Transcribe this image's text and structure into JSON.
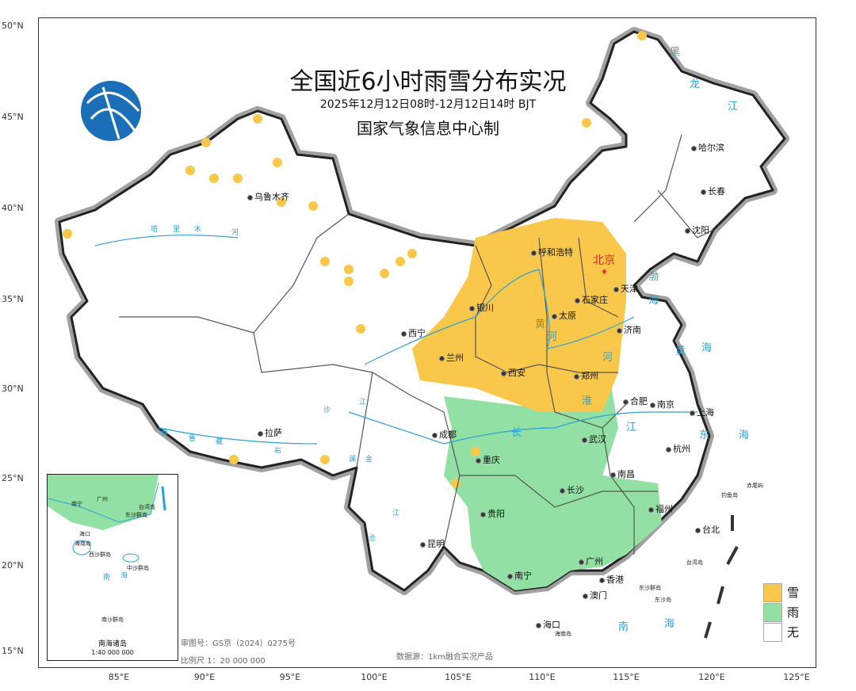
{
  "title": "全国近6小时雨雪分布实况",
  "time_range": "2025年12月12日08时-12月12日14时 BJT",
  "issuer": "国家气象信息中心制",
  "axes": {
    "latitude_labels": [
      "50°N",
      "45°N",
      "40°N",
      "35°N",
      "30°N",
      "25°N",
      "20°N",
      "15°N"
    ],
    "longitude_labels": [
      "85°E",
      "90°E",
      "95°E",
      "100°E",
      "105°E",
      "110°E",
      "115°E",
      "120°E",
      "125°E"
    ]
  },
  "capital": "北京",
  "cities": [
    "乌鲁木齐",
    "哈尔滨",
    "长春",
    "沈阳",
    "呼和浩特",
    "天津",
    "石家庄",
    "银川",
    "太原",
    "济南",
    "西宁",
    "兰州",
    "西安",
    "郑州",
    "合肥",
    "南京",
    "上海",
    "拉萨",
    "成都",
    "武汉",
    "杭州",
    "重庆",
    "南昌",
    "长沙",
    "贵阳",
    "福州",
    "台北",
    "昆明",
    "广州",
    "南宁",
    "香港",
    "澳门",
    "海口"
  ],
  "water_labels": [
    "渤",
    "海",
    "黄",
    "海",
    "东",
    "海",
    "南",
    "海",
    "黄",
    "河",
    "河",
    "长",
    "江",
    "塔",
    "里",
    "木",
    "河",
    "雅",
    "鲁",
    "藏",
    "布",
    "江",
    "金",
    "沙",
    "澜",
    "沧",
    "江",
    "黑",
    "龙",
    "江",
    "淮"
  ],
  "islands": [
    "赤尾屿",
    "钓鱼岛",
    "台湾岛",
    "东沙群岛",
    "东沙岛",
    "海南岛"
  ],
  "inset": {
    "title": "南海诸岛",
    "scale": "1:40 000 000",
    "labels": [
      "南宁",
      "广州",
      "海口",
      "海南岛",
      "西沙群岛",
      "中沙群岛",
      "南沙群岛",
      "东沙群岛",
      "台湾岛",
      "南",
      "海"
    ]
  },
  "notes": {
    "approval": "审图号：GS京（2024）0275号",
    "scale": "比例尺 1：20 000 000",
    "source": "数据源：1km融合实况产品"
  },
  "legend": [
    {
      "label": "雪",
      "color": "#f9c84a"
    },
    {
      "label": "雨",
      "color": "#93e0a4"
    },
    {
      "label": "无",
      "color": "#ffffff"
    }
  ],
  "colors": {
    "border_shadow": "#a0a0a0",
    "river": "#2aa0d8",
    "capital": "#e02020",
    "logo": "#1a6fb8"
  }
}
